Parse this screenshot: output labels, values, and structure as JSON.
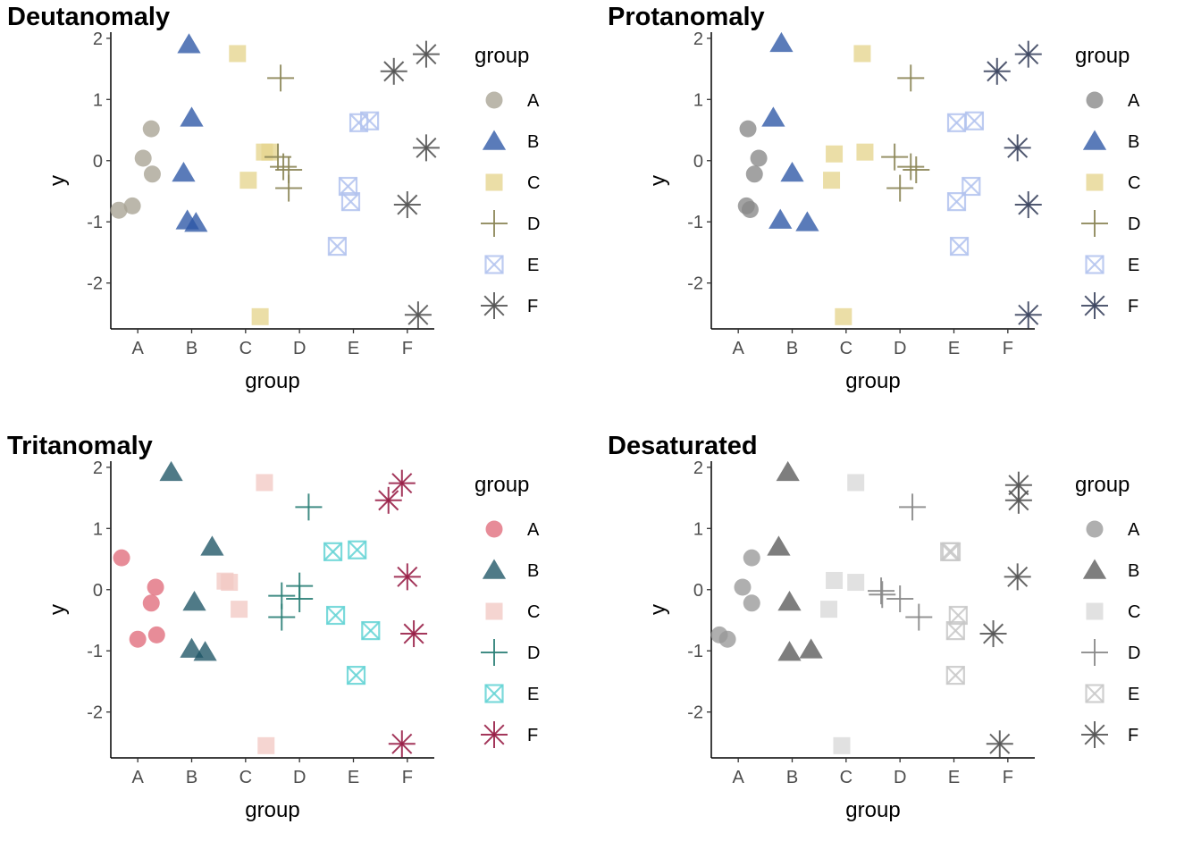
{
  "chart_data": [
    {
      "type": "scatter",
      "title": "Deutanomaly",
      "xlabel": "group",
      "ylabel": "y",
      "categories": [
        "A",
        "B",
        "C",
        "D",
        "E",
        "F"
      ],
      "ylim": [
        -2.75,
        2.1
      ],
      "y_ticks": [
        -2,
        -1,
        0,
        1,
        2
      ],
      "grid": false,
      "legend": {
        "title": "group",
        "position": "right"
      },
      "series": [
        {
          "name": "A",
          "shape": "circle",
          "color": "#a8a394",
          "points": [
            {
              "x": -0.35,
              "y": -0.81
            },
            {
              "x": -0.1,
              "y": -0.74
            },
            {
              "x": 0.1,
              "y": 0.04
            },
            {
              "x": 0.25,
              "y": 0.52
            },
            {
              "x": 0.27,
              "y": -0.22
            }
          ]
        },
        {
          "name": "B",
          "shape": "triangle",
          "color": "#2c56a5",
          "points": [
            {
              "x": -0.05,
              "y": 1.9
            },
            {
              "x": 0.0,
              "y": 0.7
            },
            {
              "x": -0.15,
              "y": -0.2
            },
            {
              "x": -0.08,
              "y": -0.98
            },
            {
              "x": 0.08,
              "y": -1.02
            }
          ]
        },
        {
          "name": "C",
          "shape": "square",
          "color": "#e6d58e",
          "points": [
            {
              "x": -0.15,
              "y": 1.75
            },
            {
              "x": 0.35,
              "y": 0.14
            },
            {
              "x": 0.45,
              "y": 0.14
            },
            {
              "x": 0.05,
              "y": -0.32
            },
            {
              "x": 0.27,
              "y": -2.55
            }
          ]
        },
        {
          "name": "D",
          "shape": "plus",
          "color": "#8c8658",
          "points": [
            {
              "x": -0.35,
              "y": 1.35
            },
            {
              "x": -0.4,
              "y": 0.06
            },
            {
              "x": -0.3,
              "y": -0.1
            },
            {
              "x": -0.2,
              "y": -0.15
            },
            {
              "x": -0.2,
              "y": -0.45
            }
          ]
        },
        {
          "name": "E",
          "shape": "square-cross",
          "color": "#b3c3ef",
          "points": [
            {
              "x": 0.1,
              "y": 0.62
            },
            {
              "x": 0.3,
              "y": 0.65
            },
            {
              "x": -0.1,
              "y": -0.42
            },
            {
              "x": -0.05,
              "y": -0.67
            },
            {
              "x": -0.3,
              "y": -1.4
            }
          ]
        },
        {
          "name": "F",
          "shape": "asterisk",
          "color": "#555555",
          "points": [
            {
              "x": -0.25,
              "y": 1.46
            },
            {
              "x": 0.35,
              "y": 1.74
            },
            {
              "x": 0.35,
              "y": 0.21
            },
            {
              "x": 0.0,
              "y": -0.72
            },
            {
              "x": 0.2,
              "y": -2.52
            }
          ]
        }
      ]
    },
    {
      "type": "scatter",
      "title": "Protanomaly",
      "xlabel": "group",
      "ylabel": "y",
      "categories": [
        "A",
        "B",
        "C",
        "D",
        "E",
        "F"
      ],
      "ylim": [
        -2.75,
        2.1
      ],
      "y_ticks": [
        -2,
        -1,
        0,
        1,
        2
      ],
      "grid": false,
      "legend": {
        "title": "group",
        "position": "right"
      },
      "series": [
        {
          "name": "A",
          "shape": "circle",
          "color": "#888888",
          "points": [
            {
              "x": 0.15,
              "y": -0.74
            },
            {
              "x": 0.22,
              "y": -0.8
            },
            {
              "x": 0.38,
              "y": 0.04
            },
            {
              "x": 0.18,
              "y": 0.52
            },
            {
              "x": 0.3,
              "y": -0.22
            }
          ]
        },
        {
          "name": "B",
          "shape": "triangle",
          "color": "#2c56a5",
          "points": [
            {
              "x": -0.2,
              "y": 1.92
            },
            {
              "x": -0.35,
              "y": 0.7
            },
            {
              "x": 0.0,
              "y": -0.2
            },
            {
              "x": -0.22,
              "y": -0.97
            },
            {
              "x": 0.28,
              "y": -1.01
            }
          ]
        },
        {
          "name": "C",
          "shape": "square",
          "color": "#e6d58e",
          "points": [
            {
              "x": 0.3,
              "y": 1.75
            },
            {
              "x": 0.35,
              "y": 0.14
            },
            {
              "x": -0.22,
              "y": 0.11
            },
            {
              "x": -0.27,
              "y": -0.32
            },
            {
              "x": -0.05,
              "y": -2.55
            }
          ]
        },
        {
          "name": "D",
          "shape": "plus",
          "color": "#8c8658",
          "points": [
            {
              "x": 0.2,
              "y": 1.35
            },
            {
              "x": -0.1,
              "y": 0.06
            },
            {
              "x": 0.2,
              "y": -0.1
            },
            {
              "x": 0.3,
              "y": -0.15
            },
            {
              "x": 0.0,
              "y": -0.45
            }
          ]
        },
        {
          "name": "E",
          "shape": "square-cross",
          "color": "#b3c3ef",
          "points": [
            {
              "x": 0.05,
              "y": 0.62
            },
            {
              "x": 0.38,
              "y": 0.65
            },
            {
              "x": 0.32,
              "y": -0.42
            },
            {
              "x": 0.05,
              "y": -0.67
            },
            {
              "x": 0.1,
              "y": -1.4
            }
          ]
        },
        {
          "name": "F",
          "shape": "asterisk",
          "color": "#3d4660",
          "points": [
            {
              "x": -0.2,
              "y": 1.46
            },
            {
              "x": 0.38,
              "y": 1.74
            },
            {
              "x": 0.18,
              "y": 0.21
            },
            {
              "x": 0.38,
              "y": -0.72
            },
            {
              "x": 0.38,
              "y": -2.52
            }
          ]
        }
      ]
    },
    {
      "type": "scatter",
      "title": "Tritanomaly",
      "xlabel": "group",
      "ylabel": "y",
      "categories": [
        "A",
        "B",
        "C",
        "D",
        "E",
        "F"
      ],
      "ylim": [
        -2.75,
        2.1
      ],
      "y_ticks": [
        -2,
        -1,
        0,
        1,
        2
      ],
      "grid": false,
      "legend": {
        "title": "group",
        "position": "right"
      },
      "series": [
        {
          "name": "A",
          "shape": "circle",
          "color": "#e06b7b",
          "points": [
            {
              "x": -0.3,
              "y": 0.52
            },
            {
              "x": 0.0,
              "y": -0.81
            },
            {
              "x": 0.35,
              "y": -0.74
            },
            {
              "x": 0.25,
              "y": -0.22
            },
            {
              "x": 0.33,
              "y": 0.04
            }
          ]
        },
        {
          "name": "B",
          "shape": "triangle",
          "color": "#1e5565",
          "points": [
            {
              "x": -0.38,
              "y": 1.92
            },
            {
              "x": 0.38,
              "y": 0.7
            },
            {
              "x": 0.05,
              "y": -0.2
            },
            {
              "x": 0.0,
              "y": -0.97
            },
            {
              "x": 0.25,
              "y": -1.02
            }
          ]
        },
        {
          "name": "C",
          "shape": "square",
          "color": "#f2c9c4",
          "points": [
            {
              "x": 0.35,
              "y": 1.75
            },
            {
              "x": -0.38,
              "y": 0.14
            },
            {
              "x": -0.3,
              "y": 0.12
            },
            {
              "x": -0.12,
              "y": -0.32
            },
            {
              "x": 0.38,
              "y": -2.55
            }
          ]
        },
        {
          "name": "D",
          "shape": "plus",
          "color": "#2b8077",
          "points": [
            {
              "x": 0.17,
              "y": 1.35
            },
            {
              "x": -0.33,
              "y": -0.1
            },
            {
              "x": 0.0,
              "y": 0.06
            },
            {
              "x": 0.0,
              "y": -0.15
            },
            {
              "x": -0.33,
              "y": -0.45
            }
          ]
        },
        {
          "name": "E",
          "shape": "square-cross",
          "color": "#64d4d5",
          "points": [
            {
              "x": -0.38,
              "y": 0.62
            },
            {
              "x": 0.07,
              "y": 0.65
            },
            {
              "x": -0.33,
              "y": -0.42
            },
            {
              "x": 0.32,
              "y": -0.67
            },
            {
              "x": 0.05,
              "y": -1.4
            }
          ]
        },
        {
          "name": "F",
          "shape": "asterisk",
          "color": "#992048",
          "points": [
            {
              "x": -0.35,
              "y": 1.46
            },
            {
              "x": -0.1,
              "y": 1.74
            },
            {
              "x": 0.0,
              "y": 0.21
            },
            {
              "x": 0.12,
              "y": -0.72
            },
            {
              "x": -0.1,
              "y": -2.52
            }
          ]
        }
      ]
    },
    {
      "type": "scatter",
      "title": "Desaturated",
      "xlabel": "group",
      "ylabel": "y",
      "categories": [
        "A",
        "B",
        "C",
        "D",
        "E",
        "F"
      ],
      "ylim": [
        -2.75,
        2.1
      ],
      "y_ticks": [
        -2,
        -1,
        0,
        1,
        2
      ],
      "grid": false,
      "legend": {
        "title": "group",
        "position": "right"
      },
      "series": [
        {
          "name": "A",
          "shape": "circle",
          "color": "#999999",
          "points": [
            {
              "x": -0.35,
              "y": -0.74
            },
            {
              "x": -0.2,
              "y": -0.81
            },
            {
              "x": 0.08,
              "y": 0.04
            },
            {
              "x": 0.25,
              "y": 0.52
            },
            {
              "x": 0.25,
              "y": -0.22
            }
          ]
        },
        {
          "name": "B",
          "shape": "triangle",
          "color": "#5a5a5a",
          "points": [
            {
              "x": -0.08,
              "y": 1.92
            },
            {
              "x": -0.25,
              "y": 0.7
            },
            {
              "x": -0.05,
              "y": -0.2
            },
            {
              "x": -0.05,
              "y": -1.02
            },
            {
              "x": 0.35,
              "y": -0.98
            }
          ]
        },
        {
          "name": "C",
          "shape": "square",
          "color": "#d8d8d8",
          "points": [
            {
              "x": 0.18,
              "y": 1.75
            },
            {
              "x": -0.22,
              "y": 0.15
            },
            {
              "x": 0.18,
              "y": 0.12
            },
            {
              "x": -0.32,
              "y": -0.32
            },
            {
              "x": -0.08,
              "y": -2.55
            }
          ]
        },
        {
          "name": "D",
          "shape": "plus",
          "color": "#888888",
          "points": [
            {
              "x": 0.23,
              "y": 1.35
            },
            {
              "x": -0.35,
              "y": -0.02
            },
            {
              "x": -0.33,
              "y": -0.08
            },
            {
              "x": 0.0,
              "y": -0.15
            },
            {
              "x": 0.35,
              "y": -0.45
            }
          ]
        },
        {
          "name": "E",
          "shape": "square-cross",
          "color": "#c8c8c8",
          "points": [
            {
              "x": -0.08,
              "y": 0.62
            },
            {
              "x": -0.05,
              "y": 0.62
            },
            {
              "x": 0.08,
              "y": -0.42
            },
            {
              "x": 0.03,
              "y": -0.67
            },
            {
              "x": 0.03,
              "y": -1.4
            }
          ]
        },
        {
          "name": "F",
          "shape": "asterisk",
          "color": "#555555",
          "points": [
            {
              "x": 0.2,
              "y": 1.71
            },
            {
              "x": 0.2,
              "y": 1.46
            },
            {
              "x": 0.18,
              "y": 0.21
            },
            {
              "x": -0.27,
              "y": -0.72
            },
            {
              "x": -0.15,
              "y": -2.52
            }
          ]
        }
      ]
    }
  ]
}
